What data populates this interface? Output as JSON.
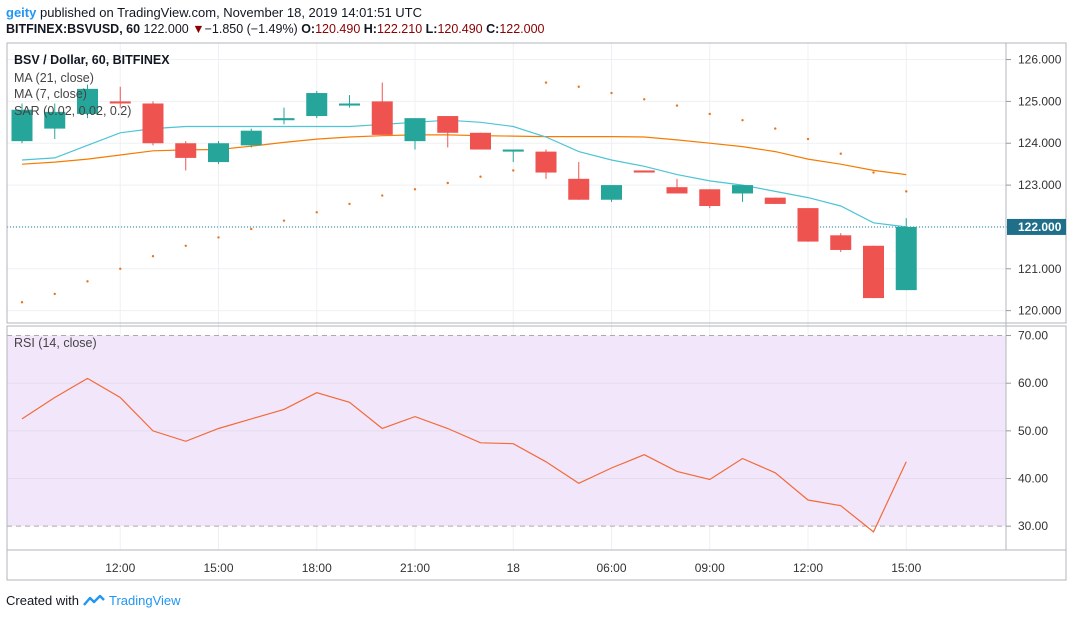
{
  "header": {
    "user": "geity",
    "published_text": "published on TradingView.com, November 18, 2019 14:01:51 UTC",
    "symbol": "BITFINEX:BSVUSD, 60",
    "last": "122.000",
    "change_arrow": "▼",
    "change": "−1.850 (−1.49%)",
    "o_label": "O:",
    "o_value": "120.490",
    "h_label": "H:",
    "h_value": "122.210",
    "l_label": "L:",
    "l_value": "120.490",
    "c_label": "C:",
    "c_value": "122.000"
  },
  "legend": {
    "title": "BSV / Dollar, 60, BITFINEX",
    "ma21": "MA (21, close)",
    "ma7": "MA (7, close)",
    "sar": "SAR (0.02, 0.02, 0.2)",
    "rsi": "RSI (14, close)"
  },
  "footer": {
    "created": "Created with",
    "brand": "TradingView"
  },
  "colors": {
    "up": "#26a69a",
    "down": "#ef5350",
    "ma21": "#f57c00",
    "ma7": "#4dc4d6",
    "sar": "#e6761f",
    "rsi_line": "#f26b3a",
    "rsi_band": "#f2e6fb",
    "last_line": "#1a7c9c",
    "last_label_bg": "#1f6f8b"
  },
  "chart_data": [
    {
      "type": "candlestick",
      "title": "BSV / Dollar, 60, BITFINEX",
      "ylim": [
        119.8,
        126.3
      ],
      "y_ticks": [
        "120.000",
        "121.000",
        "122.000",
        "123.000",
        "124.000",
        "125.000",
        "126.000"
      ],
      "x_ticks": [
        "12:00",
        "15:00",
        "18:00",
        "21:00",
        "18",
        "06:00",
        "09:00",
        "12:00",
        "15:00"
      ],
      "last_price_label": "122.000",
      "candles": [
        {
          "o": 124.05,
          "h": 124.95,
          "l": 124.0,
          "c": 124.8
        },
        {
          "o": 124.35,
          "h": 124.95,
          "l": 124.1,
          "c": 124.75
        },
        {
          "o": 124.7,
          "h": 125.4,
          "l": 124.6,
          "c": 125.3
        },
        {
          "o": 125.0,
          "h": 125.35,
          "l": 124.85,
          "c": 124.95
        },
        {
          "o": 124.95,
          "h": 125.0,
          "l": 123.95,
          "c": 124.0
        },
        {
          "o": 124.0,
          "h": 124.05,
          "l": 123.35,
          "c": 123.65
        },
        {
          "o": 123.55,
          "h": 124.05,
          "l": 123.5,
          "c": 124.0
        },
        {
          "o": 123.95,
          "h": 124.35,
          "l": 123.9,
          "c": 124.3
        },
        {
          "o": 124.55,
          "h": 124.85,
          "l": 124.45,
          "c": 124.6
        },
        {
          "o": 124.65,
          "h": 125.25,
          "l": 124.6,
          "c": 125.2
        },
        {
          "o": 124.9,
          "h": 125.15,
          "l": 124.85,
          "c": 124.95
        },
        {
          "o": 125.0,
          "h": 125.45,
          "l": 124.2,
          "c": 124.2
        },
        {
          "o": 124.05,
          "h": 124.6,
          "l": 123.85,
          "c": 124.6
        },
        {
          "o": 124.65,
          "h": 124.65,
          "l": 123.9,
          "c": 124.25
        },
        {
          "o": 124.25,
          "h": 124.25,
          "l": 123.85,
          "c": 123.85
        },
        {
          "o": 123.8,
          "h": 123.85,
          "l": 123.55,
          "c": 123.85
        },
        {
          "o": 123.8,
          "h": 123.85,
          "l": 123.15,
          "c": 123.3
        },
        {
          "o": 123.15,
          "h": 123.55,
          "l": 122.65,
          "c": 122.65
        },
        {
          "o": 122.65,
          "h": 123.0,
          "l": 122.6,
          "c": 123.0
        },
        {
          "o": 123.35,
          "h": 123.35,
          "l": 123.3,
          "c": 123.3
        },
        {
          "o": 122.95,
          "h": 123.15,
          "l": 122.8,
          "c": 122.8
        },
        {
          "o": 122.9,
          "h": 122.9,
          "l": 122.45,
          "c": 122.5
        },
        {
          "o": 122.8,
          "h": 123.0,
          "l": 122.6,
          "c": 123.0
        },
        {
          "o": 122.7,
          "h": 122.7,
          "l": 122.55,
          "c": 122.55
        },
        {
          "o": 122.45,
          "h": 122.45,
          "l": 121.65,
          "c": 121.65
        },
        {
          "o": 121.8,
          "h": 121.85,
          "l": 121.4,
          "c": 121.45
        },
        {
          "o": 121.55,
          "h": 121.55,
          "l": 120.3,
          "c": 120.3
        },
        {
          "o": 120.49,
          "h": 122.21,
          "l": 120.49,
          "c": 122.0
        }
      ],
      "series": [
        {
          "name": "MA (21, close)",
          "values": [
            123.5,
            123.55,
            123.62,
            123.72,
            123.82,
            123.84,
            123.85,
            123.93,
            124.02,
            124.1,
            124.15,
            124.18,
            124.2,
            124.2,
            124.18,
            124.17,
            124.16,
            124.16,
            124.16,
            124.15,
            124.08,
            124.0,
            123.92,
            123.8,
            123.62,
            123.5,
            123.35,
            123.25
          ]
        },
        {
          "name": "MA (7, close)",
          "values": [
            123.6,
            123.65,
            123.95,
            124.25,
            124.35,
            124.4,
            124.4,
            124.4,
            124.4,
            124.4,
            124.4,
            124.45,
            124.5,
            124.55,
            124.5,
            124.4,
            124.15,
            123.8,
            123.6,
            123.45,
            123.25,
            123.1,
            123.0,
            122.85,
            122.7,
            122.5,
            122.1,
            122.0
          ]
        },
        {
          "name": "SAR (0.02, 0.02, 0.2)",
          "values": [
            120.2,
            120.4,
            120.7,
            121.0,
            121.3,
            121.55,
            121.75,
            121.95,
            122.15,
            122.35,
            122.55,
            122.75,
            122.9,
            123.05,
            123.2,
            123.35,
            125.45,
            125.35,
            125.2,
            125.05,
            124.9,
            124.7,
            124.55,
            124.35,
            124.1,
            123.75,
            123.3,
            122.85
          ]
        }
      ]
    },
    {
      "type": "line",
      "title": "RSI (14, close)",
      "ylim": [
        25,
        72
      ],
      "y_ticks": [
        "30.00",
        "40.00",
        "50.00",
        "60.00",
        "70.00"
      ],
      "band": [
        30,
        70
      ],
      "series": [
        {
          "name": "RSI (14, close)",
          "values": [
            52.5,
            57.0,
            61.0,
            57.0,
            50.0,
            47.8,
            50.5,
            52.5,
            54.5,
            58.0,
            56.0,
            50.5,
            53.0,
            50.5,
            47.5,
            47.3,
            43.5,
            39.0,
            42.2,
            45.0,
            41.5,
            39.8,
            44.2,
            41.2,
            35.5,
            34.3,
            28.8,
            43.5
          ]
        }
      ]
    }
  ]
}
